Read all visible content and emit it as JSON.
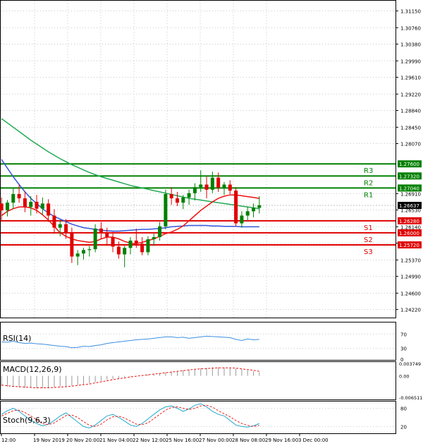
{
  "chart_data": {
    "type": "candlestick",
    "instrument_hint": "",
    "main": {
      "ylim": [
        1.2405,
        1.3137
      ],
      "y_ticks": [
        1.3115,
        1.3076,
        1.3038,
        1.2999,
        1.2961,
        1.2922,
        1.2884,
        1.2845,
        1.2807,
        1.2691,
        1.2653,
        1.2614,
        1.2576,
        1.2537,
        1.2499,
        1.246,
        1.2422
      ],
      "y_tick_labels": [
        "1.31150",
        "1.30760",
        "1.30380",
        "1.29990",
        "1.29610",
        "1.29220",
        "1.28840",
        "1.28450",
        "1.28070",
        "1.26910",
        "1.26530",
        "1.26140",
        "1.25760",
        "1.25370",
        "1.24990",
        "1.24600",
        "1.24220"
      ],
      "current_price": 1.26637,
      "current_price_label": "1.26637",
      "levels": [
        {
          "name": "R3",
          "value": 1.276,
          "label": "1.27600",
          "color": "#008000"
        },
        {
          "name": "R2",
          "value": 1.2732,
          "label": "1.27320",
          "color": "#008000"
        },
        {
          "name": "R1",
          "value": 1.2704,
          "label": "1.27040",
          "color": "#008000"
        },
        {
          "name": "S1",
          "value": 1.2628,
          "label": "1.26280",
          "color": "#e00000"
        },
        {
          "name": "S2",
          "value": 1.26,
          "label": "1.26000",
          "color": "#e00000"
        },
        {
          "name": "S3",
          "value": 1.2572,
          "label": "1.25720",
          "color": "#e00000"
        }
      ],
      "candles": [
        [
          1.2668,
          1.2682,
          1.263,
          1.2652
        ],
        [
          1.2652,
          1.2676,
          1.2638,
          1.267
        ],
        [
          1.267,
          1.2705,
          1.2655,
          1.269
        ],
        [
          1.269,
          1.2712,
          1.267,
          1.268
        ],
        [
          1.268,
          1.2696,
          1.2648,
          1.266
        ],
        [
          1.266,
          1.2685,
          1.264,
          1.2672
        ],
        [
          1.2672,
          1.2688,
          1.2645,
          1.2656
        ],
        [
          1.2656,
          1.2682,
          1.2642,
          1.2668
        ],
        [
          1.2668,
          1.2678,
          1.2625,
          1.264
        ],
        [
          1.264,
          1.2655,
          1.2598,
          1.2612
        ],
        [
          1.2612,
          1.263,
          1.2592,
          1.262
        ],
        [
          1.262,
          1.2632,
          1.2586,
          1.26
        ],
        [
          1.26,
          1.2612,
          1.253,
          1.2545
        ],
        [
          1.2545,
          1.256,
          1.2525,
          1.2552
        ],
        [
          1.2552,
          1.2565,
          1.2538,
          1.256
        ],
        [
          1.256,
          1.257,
          1.2545,
          1.2562
        ],
        [
          1.2562,
          1.262,
          1.2555,
          1.261
        ],
        [
          1.261,
          1.2625,
          1.2585,
          1.26
        ],
        [
          1.26,
          1.2612,
          1.257,
          1.259
        ],
        [
          1.259,
          1.2602,
          1.2555,
          1.2568
        ],
        [
          1.2568,
          1.258,
          1.254,
          1.255
        ],
        [
          1.255,
          1.257,
          1.252,
          1.2565
        ],
        [
          1.2565,
          1.259,
          1.255,
          1.2582
        ],
        [
          1.2582,
          1.261,
          1.2565,
          1.2575
        ],
        [
          1.2575,
          1.259,
          1.2548,
          1.2555
        ],
        [
          1.2555,
          1.2592,
          1.2548,
          1.2585
        ],
        [
          1.2585,
          1.2598,
          1.257,
          1.259
        ],
        [
          1.259,
          1.2625,
          1.2582,
          1.2615
        ],
        [
          1.2615,
          1.27,
          1.2608,
          1.269
        ],
        [
          1.269,
          1.2706,
          1.2665,
          1.268
        ],
        [
          1.268,
          1.2695,
          1.2662,
          1.267
        ],
        [
          1.267,
          1.2688,
          1.2655,
          1.2682
        ],
        [
          1.2682,
          1.27,
          1.2665,
          1.2692
        ],
        [
          1.2692,
          1.2715,
          1.2675,
          1.2706
        ],
        [
          1.2706,
          1.2745,
          1.2695,
          1.2712
        ],
        [
          1.2712,
          1.273,
          1.268,
          1.27
        ],
        [
          1.27,
          1.2742,
          1.2692,
          1.2728
        ],
        [
          1.2728,
          1.274,
          1.2695,
          1.2705
        ],
        [
          1.2705,
          1.2718,
          1.2688,
          1.2712
        ],
        [
          1.2712,
          1.2722,
          1.269,
          1.2698
        ],
        [
          1.2698,
          1.2706,
          1.2615,
          1.2622
        ],
        [
          1.2622,
          1.265,
          1.2612,
          1.264
        ],
        [
          1.264,
          1.266,
          1.2628,
          1.265
        ],
        [
          1.265,
          1.2668,
          1.2636,
          1.2658
        ],
        [
          1.2658,
          1.2685,
          1.2645,
          1.2664
        ]
      ],
      "ma_fast": [
        1.264,
        1.265,
        1.2656,
        1.266,
        1.266,
        1.2658,
        1.2652,
        1.2642,
        1.263,
        1.2615,
        1.26,
        1.2592,
        1.2586,
        1.2582,
        1.258,
        1.2578,
        1.258,
        1.2586,
        1.259,
        1.259,
        1.2586,
        1.258,
        1.2576,
        1.2575,
        1.2578,
        1.2582,
        1.2586,
        1.2592,
        1.2598,
        1.2602,
        1.2608,
        1.2616,
        1.2628,
        1.264,
        1.2652,
        1.2662,
        1.2672,
        1.268,
        1.2685,
        1.2688,
        1.2688,
        1.2686,
        1.2684,
        1.2682,
        1.268
      ],
      "ma_mid": [
        1.277,
        1.275,
        1.273,
        1.2712,
        1.2695,
        1.268,
        1.2668,
        1.2656,
        1.2646,
        1.2638,
        1.2632,
        1.2626,
        1.262,
        1.2616,
        1.2612,
        1.261,
        1.2608,
        1.2606,
        1.2605,
        1.2604,
        1.2604,
        1.2605,
        1.2606,
        1.2607,
        1.2608,
        1.2608,
        1.2609,
        1.261,
        1.2612,
        1.2614,
        1.2615,
        1.2616,
        1.2617,
        1.2617,
        1.2617,
        1.2617,
        1.2616,
        1.2616,
        1.2615,
        1.2615,
        1.2615,
        1.2614,
        1.2614,
        1.2614,
        1.2614
      ],
      "ma_slow": [
        1.2865,
        1.2855,
        1.2845,
        1.2835,
        1.2825,
        1.2815,
        1.2806,
        1.2797,
        1.2788,
        1.278,
        1.2772,
        1.2765,
        1.2758,
        1.2752,
        1.2746,
        1.274,
        1.2735,
        1.273,
        1.2726,
        1.2722,
        1.2718,
        1.2714,
        1.271,
        1.2707,
        1.2704,
        1.2701,
        1.2698,
        1.2695,
        1.2692,
        1.2689,
        1.2686,
        1.2683,
        1.268,
        1.2678,
        1.2676,
        1.2674,
        1.2672,
        1.267,
        1.2668,
        1.2666,
        1.2664,
        1.2662,
        1.266,
        1.2658,
        1.2656
      ]
    },
    "rsi": {
      "label": "RSI(14)",
      "ylim": [
        0,
        100
      ],
      "y_tick_labels": [
        "70",
        "30",
        "0"
      ],
      "values": [
        48,
        47,
        50,
        46,
        44,
        45,
        43,
        42,
        40,
        38,
        36,
        35,
        32,
        33,
        36,
        35,
        38,
        40,
        44,
        46,
        48,
        50,
        52,
        54,
        55,
        56,
        58,
        60,
        62,
        62,
        60,
        61,
        58,
        60,
        62,
        64,
        63,
        62,
        61,
        60,
        55,
        52,
        56,
        54,
        55
      ]
    },
    "macd": {
      "label": "MACD(12,26,9)",
      "ylim": [
        -0.006511,
        0.003749
      ],
      "y_tick_labels": [
        "0.003749",
        "0.00",
        "-0.006511"
      ],
      "histogram": [
        -0.003,
        -0.0031,
        -0.0032,
        -0.0033,
        -0.0034,
        -0.0034,
        -0.0035,
        -0.0035,
        -0.0034,
        -0.0033,
        -0.0031,
        -0.003,
        -0.0028,
        -0.0026,
        -0.0024,
        -0.0021,
        -0.0018,
        -0.0015,
        -0.0012,
        -0.0009,
        -0.0007,
        -0.0004,
        -0.0002,
        0.0,
        0.0002,
        0.0004,
        0.0006,
        0.0008,
        0.001,
        0.0012,
        0.0014,
        0.0016,
        0.0018,
        0.002,
        0.0022,
        0.0023,
        0.0024,
        0.0024,
        0.0024,
        0.0023,
        0.0021,
        0.0019,
        0.0016,
        0.0013,
        0.001
      ],
      "signal": [
        -0.0026,
        -0.0028,
        -0.003,
        -0.0031,
        -0.0032,
        -0.0033,
        -0.0034,
        -0.0034,
        -0.0034,
        -0.0033,
        -0.0032,
        -0.0031,
        -0.0029,
        -0.0027,
        -0.0025,
        -0.0023,
        -0.002,
        -0.0017,
        -0.0014,
        -0.0011,
        -0.0008,
        -0.0006,
        -0.0003,
        -0.0001,
        0.0001,
        0.0003,
        0.0005,
        0.0007,
        0.0009,
        0.0011,
        0.0013,
        0.0015,
        0.0017,
        0.0019,
        0.002,
        0.0021,
        0.0022,
        0.0023,
        0.0023,
        0.0023,
        0.0022,
        0.002,
        0.0018,
        0.0016,
        0.0013
      ]
    },
    "stoch": {
      "label": "Stoch(9,6,3)",
      "ylim": [
        0,
        100
      ],
      "y_tick_labels": [
        "80",
        "20"
      ],
      "k": [
        60,
        72,
        80,
        70,
        55,
        40,
        30,
        22,
        28,
        40,
        55,
        65,
        50,
        35,
        20,
        15,
        25,
        40,
        55,
        60,
        50,
        38,
        25,
        20,
        30,
        45,
        60,
        75,
        85,
        88,
        80,
        70,
        78,
        90,
        95,
        85,
        70,
        60,
        55,
        40,
        25,
        20,
        18,
        22,
        30
      ],
      "d": [
        55,
        64,
        72,
        74,
        66,
        55,
        42,
        30,
        26,
        32,
        44,
        56,
        58,
        50,
        36,
        24,
        20,
        28,
        42,
        52,
        54,
        48,
        38,
        28,
        26,
        32,
        46,
        60,
        74,
        83,
        85,
        80,
        76,
        80,
        88,
        90,
        84,
        72,
        62,
        52,
        40,
        30,
        24,
        20,
        24
      ]
    },
    "x_tick_labels": [
      "12:00",
      "19 Nov 2019",
      "20 Nov 20:00",
      "21 Nov 04:00",
      "22 Nov 12:00",
      "25 Nov 16:00",
      "27 Nov 00:00",
      "28 Nov 08:00",
      "29 Nov 16:00",
      "3 Dec 00:00"
    ],
    "colors": {
      "ma_fast": "#ee1111",
      "ma_mid": "#3355dd",
      "ma_slow": "#22aa55",
      "candle_up": "#008000",
      "candle_down": "#e00000",
      "rsi_line": "#3b8fe0",
      "stoch_k": "#22aacc",
      "stoch_d": "#ee2222",
      "grid": "#c8c8c8"
    }
  }
}
